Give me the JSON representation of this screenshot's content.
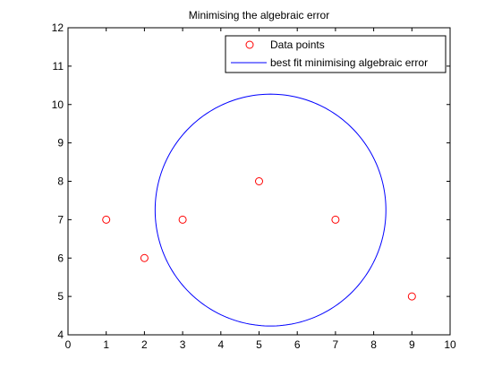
{
  "chart_data": {
    "type": "scatter",
    "title": "Minimising the algebraic error",
    "xlabel": "",
    "ylabel": "",
    "xlim": [
      0,
      10
    ],
    "ylim": [
      4,
      12
    ],
    "xticks": [
      "0",
      "1",
      "2",
      "3",
      "4",
      "5",
      "6",
      "7",
      "8",
      "9",
      "10"
    ],
    "yticks": [
      "4",
      "5",
      "6",
      "7",
      "8",
      "9",
      "10",
      "11",
      "12"
    ],
    "grid": false,
    "legend_position": "top-right",
    "series": [
      {
        "name": "Data points",
        "kind": "scatter",
        "marker": "circle",
        "color": "#ff0000",
        "x": [
          1,
          2,
          3,
          5,
          7,
          9
        ],
        "y": [
          7,
          6,
          7,
          8,
          7,
          5
        ]
      },
      {
        "name": "best fit minimising algebraic error",
        "kind": "circle-curve",
        "color": "#0000ff",
        "center": [
          5.3,
          7.25
        ],
        "radius": 3.02
      }
    ]
  }
}
